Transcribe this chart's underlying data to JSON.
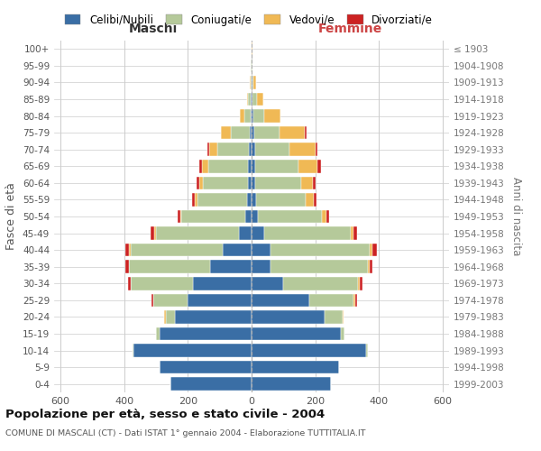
{
  "age_groups": [
    "0-4",
    "5-9",
    "10-14",
    "15-19",
    "20-24",
    "25-29",
    "30-34",
    "35-39",
    "40-44",
    "45-49",
    "50-54",
    "55-59",
    "60-64",
    "65-69",
    "70-74",
    "75-79",
    "80-84",
    "85-89",
    "90-94",
    "95-99",
    "100+"
  ],
  "birth_years": [
    "1999-2003",
    "1994-1998",
    "1989-1993",
    "1984-1988",
    "1979-1983",
    "1974-1978",
    "1969-1973",
    "1964-1968",
    "1959-1963",
    "1954-1958",
    "1949-1953",
    "1944-1948",
    "1939-1943",
    "1934-1938",
    "1929-1933",
    "1924-1928",
    "1919-1923",
    "1914-1918",
    "1909-1913",
    "1904-1908",
    "≤ 1903"
  ],
  "colors": {
    "celibi": "#3a6ea5",
    "coniugati": "#b5c99a",
    "vedovi": "#f0b955",
    "divorziati": "#cc2222"
  },
  "males": {
    "celibi": [
      255,
      290,
      370,
      290,
      240,
      200,
      185,
      130,
      90,
      40,
      20,
      15,
      12,
      10,
      8,
      5,
      3,
      2,
      1,
      1,
      1
    ],
    "coniugati": [
      0,
      0,
      5,
      10,
      30,
      110,
      195,
      255,
      290,
      260,
      200,
      155,
      140,
      125,
      100,
      60,
      20,
      8,
      3,
      1,
      0
    ],
    "vedovi": [
      0,
      0,
      0,
      0,
      5,
      0,
      0,
      0,
      5,
      5,
      5,
      8,
      12,
      20,
      25,
      30,
      15,
      5,
      2,
      0,
      0
    ],
    "divorziati": [
      0,
      0,
      0,
      0,
      0,
      5,
      8,
      10,
      10,
      12,
      8,
      8,
      10,
      8,
      5,
      0,
      0,
      0,
      0,
      0,
      0
    ]
  },
  "females": {
    "nubili": [
      250,
      275,
      360,
      280,
      230,
      180,
      100,
      60,
      60,
      40,
      20,
      15,
      12,
      12,
      10,
      8,
      5,
      3,
      2,
      1,
      1
    ],
    "coniugati": [
      0,
      0,
      5,
      12,
      55,
      140,
      235,
      305,
      310,
      270,
      200,
      155,
      145,
      135,
      110,
      80,
      35,
      15,
      5,
      1,
      0
    ],
    "vedovi": [
      0,
      0,
      0,
      0,
      5,
      5,
      5,
      5,
      8,
      10,
      15,
      25,
      35,
      60,
      80,
      80,
      50,
      20,
      8,
      2,
      1
    ],
    "divorziati": [
      0,
      0,
      0,
      0,
      0,
      5,
      8,
      10,
      15,
      12,
      8,
      8,
      10,
      10,
      8,
      5,
      0,
      0,
      0,
      0,
      0
    ]
  },
  "xlim": 620,
  "title": "Popolazione per età, sesso e stato civile - 2004",
  "subtitle": "COMUNE DI MASCALI (CT) - Dati ISTAT 1° gennaio 2004 - Elaborazione TUTTITALIA.IT",
  "ylabel": "Fasce di età",
  "ylabel_right": "Anni di nascita",
  "xlabel_left": "Maschi",
  "xlabel_right": "Femmine",
  "bg_color": "#ffffff",
  "grid_color": "#cccccc"
}
